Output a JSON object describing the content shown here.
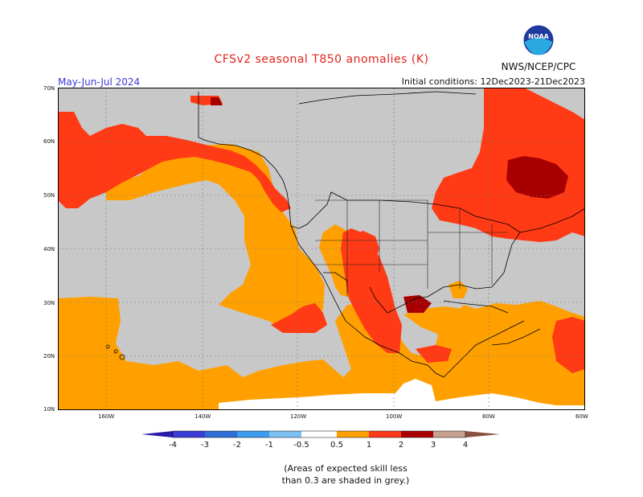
{
  "title": "CFSv2 seasonal T850 anomalies (K)",
  "season": "May-Jun-Jul 2024",
  "initial_conditions": "Initial conditions: 12Dec2023-21Dec2023",
  "agency": "NWS/NCEP/CPC",
  "logo_text": "NOAA",
  "lat_labels": [
    "70N",
    "60N",
    "50N",
    "40N",
    "30N",
    "20N",
    "10N"
  ],
  "lon_labels": [
    "160W",
    "140W",
    "120W",
    "100W",
    "80W",
    "60W"
  ],
  "colorbar": {
    "labels": [
      "-4",
      "-3",
      "-2",
      "-1",
      "-0.5",
      "0.5",
      "1",
      "2",
      "3",
      "4"
    ],
    "colors": [
      "#2a1aa8",
      "#3b3bd6",
      "#2d6fd6",
      "#3c9cee",
      "#7cc0f2",
      "#ffffff",
      "#ffa000",
      "#ff3a1a",
      "#c30a0a",
      "#a01020",
      "#c8a090",
      "#8a5040"
    ]
  },
  "note_line1": "(Areas of expected skill less",
  "note_line2": "than 0.3 are shaded in grey.)",
  "map_colors": {
    "grey": "#c8c8c8",
    "orange": "#ffa000",
    "red": "#ff3a14",
    "darkred": "#b00000",
    "white": "#ffffff"
  }
}
